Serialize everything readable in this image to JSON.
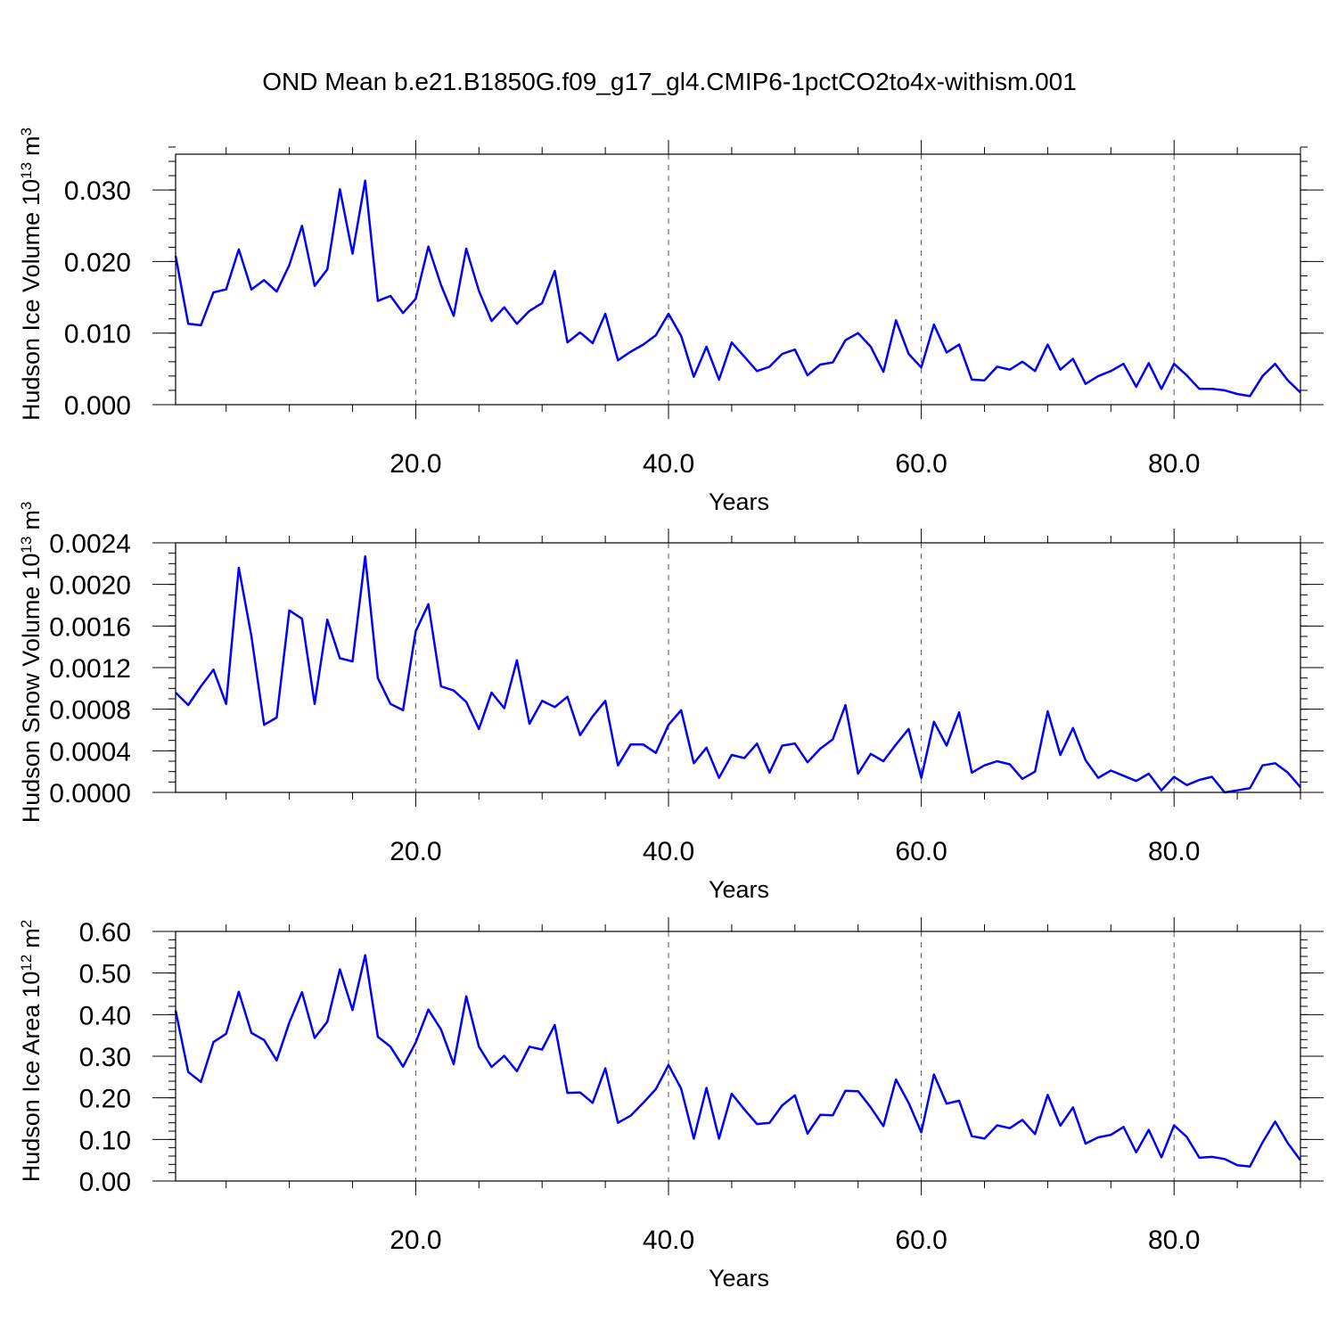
{
  "title": "OND Mean b.e21.B1850G.f09_g17_gl4.CMIP6-1pctCO2to4x-withism.001",
  "line_color": "#0000FF",
  "chart_data": [
    {
      "type": "line",
      "ylabel": "Hudson Ice Volume",
      "yunit_base": "10",
      "yunit_exp": "13",
      "yunit_unit": "m",
      "yunit_unit_exp": "3",
      "xlabel": "Years",
      "xlim": [
        1,
        90
      ],
      "ylim": [
        0,
        0.035
      ],
      "xticks": [
        20,
        40,
        60,
        80
      ],
      "xtick_labels": [
        "20.0",
        "40.0",
        "60.0",
        "80.0"
      ],
      "yticks": [
        0,
        0.01,
        0.02,
        0.03
      ],
      "ytick_labels": [
        "0.000",
        "0.010",
        "0.020",
        "0.030"
      ],
      "x_minor_step": 5,
      "y_minor_step": 0.002,
      "grid": "vertical dashed at major x ticks",
      "series": [
        {
          "x": [
            1,
            2,
            3,
            4,
            5,
            6,
            7,
            8,
            9,
            10,
            11,
            12,
            13,
            14,
            15,
            16,
            17,
            18,
            19,
            20,
            21,
            22,
            23,
            24,
            25,
            26,
            27,
            28,
            29,
            30,
            31,
            32,
            33,
            34,
            35,
            36,
            37,
            38,
            39,
            40,
            41,
            42,
            43,
            44,
            45,
            46,
            47,
            48,
            49,
            50,
            51,
            52,
            53,
            54,
            55,
            56,
            57,
            58,
            59,
            60,
            61,
            62,
            63,
            64,
            65,
            66,
            67,
            68,
            69,
            70,
            71,
            72,
            73,
            74,
            75,
            76,
            77,
            78,
            79,
            80,
            81,
            82,
            83,
            84,
            85,
            86,
            87,
            88,
            89,
            90
          ],
          "values": [
            0.0208,
            0.0113,
            0.0111,
            0.0157,
            0.0161,
            0.0217,
            0.0161,
            0.0174,
            0.0158,
            0.0195,
            0.025,
            0.0166,
            0.0189,
            0.0301,
            0.0211,
            0.0313,
            0.0145,
            0.0152,
            0.0128,
            0.0148,
            0.0221,
            0.0167,
            0.0124,
            0.0218,
            0.0159,
            0.0117,
            0.0136,
            0.0113,
            0.0131,
            0.0142,
            0.0187,
            0.0087,
            0.0101,
            0.0086,
            0.0127,
            0.0062,
            0.0074,
            0.0084,
            0.0097,
            0.0127,
            0.0096,
            0.0039,
            0.0081,
            0.0035,
            0.0087,
            0.0067,
            0.0047,
            0.0053,
            0.0071,
            0.0077,
            0.0041,
            0.0056,
            0.0059,
            0.009,
            0.01,
            0.0081,
            0.0046,
            0.0118,
            0.0071,
            0.0052,
            0.0112,
            0.0073,
            0.0084,
            0.0035,
            0.0034,
            0.0053,
            0.0049,
            0.006,
            0.0047,
            0.0084,
            0.0049,
            0.0064,
            0.0029,
            0.004,
            0.0047,
            0.0057,
            0.0025,
            0.0058,
            0.0022,
            0.0057,
            0.0041,
            0.0022,
            0.0022,
            0.002,
            0.0015,
            0.0012,
            0.004,
            0.0057,
            0.0034,
            0.0017
          ]
        }
      ]
    },
    {
      "type": "line",
      "ylabel": "Hudson Snow Volume",
      "yunit_base": "10",
      "yunit_exp": "13",
      "yunit_unit": "m",
      "yunit_unit_exp": "3",
      "xlabel": "Years",
      "xlim": [
        1,
        90
      ],
      "ylim": [
        0,
        0.0024
      ],
      "xticks": [
        20,
        40,
        60,
        80
      ],
      "xtick_labels": [
        "20.0",
        "40.0",
        "60.0",
        "80.0"
      ],
      "yticks": [
        0,
        0.0004,
        0.0008,
        0.0012,
        0.0016,
        0.002,
        0.0024
      ],
      "ytick_labels": [
        "0.0000",
        "0.0004",
        "0.0008",
        "0.0012",
        "0.0016",
        "0.0020",
        "0.0024"
      ],
      "x_minor_step": 5,
      "y_minor_step": 0.0001,
      "grid": "vertical dashed at major x ticks",
      "series": [
        {
          "x": [
            1,
            2,
            3,
            4,
            5,
            6,
            7,
            8,
            9,
            10,
            11,
            12,
            13,
            14,
            15,
            16,
            17,
            18,
            19,
            20,
            21,
            22,
            23,
            24,
            25,
            26,
            27,
            28,
            29,
            30,
            31,
            32,
            33,
            34,
            35,
            36,
            37,
            38,
            39,
            40,
            41,
            42,
            43,
            44,
            45,
            46,
            47,
            48,
            49,
            50,
            51,
            52,
            53,
            54,
            55,
            56,
            57,
            58,
            59,
            60,
            61,
            62,
            63,
            64,
            65,
            66,
            67,
            68,
            69,
            70,
            71,
            72,
            73,
            74,
            75,
            76,
            77,
            78,
            79,
            80,
            81,
            82,
            83,
            84,
            85,
            86,
            87,
            88,
            89,
            90
          ],
          "values": [
            0.00096,
            0.00084,
            0.00102,
            0.00118,
            0.00085,
            0.00216,
            0.0015,
            0.00065,
            0.00072,
            0.00175,
            0.00167,
            0.00085,
            0.00166,
            0.00129,
            0.00126,
            0.00227,
            0.0011,
            0.00085,
            0.00079,
            0.00155,
            0.00181,
            0.00102,
            0.00098,
            0.00087,
            0.00061,
            0.00096,
            0.00081,
            0.00127,
            0.00066,
            0.00088,
            0.00082,
            0.00092,
            0.00055,
            0.00073,
            0.00088,
            0.00026,
            0.00046,
            0.00046,
            0.00038,
            0.00065,
            0.00079,
            0.00028,
            0.00043,
            0.00014,
            0.00036,
            0.00033,
            0.00047,
            0.00019,
            0.00045,
            0.00047,
            0.00029,
            0.00042,
            0.00051,
            0.00084,
            0.00018,
            0.00037,
            0.0003,
            0.00046,
            0.00061,
            0.00014,
            0.00068,
            0.00045,
            0.00077,
            0.00019,
            0.00026,
            0.0003,
            0.00027,
            0.00013,
            0.0002,
            0.00078,
            0.00036,
            0.00062,
            0.00031,
            0.00014,
            0.00021,
            0.00016,
            0.00011,
            0.00018,
            2e-05,
            0.00015,
            7e-05,
            0.00012,
            0.00015,
            0.0,
            2e-05,
            4e-05,
            0.00026,
            0.00028,
            0.00019,
            5e-05
          ]
        }
      ]
    },
    {
      "type": "line",
      "ylabel": "Hudson Ice Area",
      "yunit_base": "10",
      "yunit_exp": "12",
      "yunit_unit": "m",
      "yunit_unit_exp": "2",
      "xlabel": "Years",
      "xlim": [
        1,
        90
      ],
      "ylim": [
        0,
        0.6
      ],
      "xticks": [
        20,
        40,
        60,
        80
      ],
      "xtick_labels": [
        "20.0",
        "40.0",
        "60.0",
        "80.0"
      ],
      "yticks": [
        0,
        0.1,
        0.2,
        0.3,
        0.4,
        0.5,
        0.6
      ],
      "ytick_labels": [
        "0.00",
        "0.10",
        "0.20",
        "0.30",
        "0.40",
        "0.50",
        "0.60"
      ],
      "x_minor_step": 5,
      "y_minor_step": 0.02,
      "grid": "vertical dashed at major x ticks",
      "series": [
        {
          "x": [
            1,
            2,
            3,
            4,
            5,
            6,
            7,
            8,
            9,
            10,
            11,
            12,
            13,
            14,
            15,
            16,
            17,
            18,
            19,
            20,
            21,
            22,
            23,
            24,
            25,
            26,
            27,
            28,
            29,
            30,
            31,
            32,
            33,
            34,
            35,
            36,
            37,
            38,
            39,
            40,
            41,
            42,
            43,
            44,
            45,
            46,
            47,
            48,
            49,
            50,
            51,
            52,
            53,
            54,
            55,
            56,
            57,
            58,
            59,
            60,
            61,
            62,
            63,
            64,
            65,
            66,
            67,
            68,
            69,
            70,
            71,
            72,
            73,
            74,
            75,
            76,
            77,
            78,
            79,
            80,
            81,
            82,
            83,
            84,
            85,
            86,
            87,
            88,
            89,
            90
          ],
          "values": [
            0.41,
            0.262,
            0.238,
            0.334,
            0.354,
            0.455,
            0.356,
            0.339,
            0.29,
            0.381,
            0.454,
            0.344,
            0.383,
            0.509,
            0.411,
            0.543,
            0.347,
            0.323,
            0.275,
            0.333,
            0.412,
            0.364,
            0.281,
            0.444,
            0.323,
            0.274,
            0.301,
            0.264,
            0.323,
            0.316,
            0.375,
            0.212,
            0.213,
            0.188,
            0.271,
            0.14,
            0.157,
            0.188,
            0.221,
            0.279,
            0.222,
            0.102,
            0.224,
            0.102,
            0.21,
            0.172,
            0.137,
            0.14,
            0.182,
            0.206,
            0.114,
            0.159,
            0.158,
            0.217,
            0.216,
            0.177,
            0.132,
            0.244,
            0.188,
            0.117,
            0.256,
            0.186,
            0.193,
            0.108,
            0.102,
            0.134,
            0.127,
            0.147,
            0.113,
            0.207,
            0.133,
            0.177,
            0.09,
            0.105,
            0.111,
            0.13,
            0.069,
            0.123,
            0.057,
            0.134,
            0.106,
            0.056,
            0.058,
            0.053,
            0.038,
            0.035,
            0.093,
            0.143,
            0.091,
            0.05
          ]
        }
      ]
    }
  ]
}
